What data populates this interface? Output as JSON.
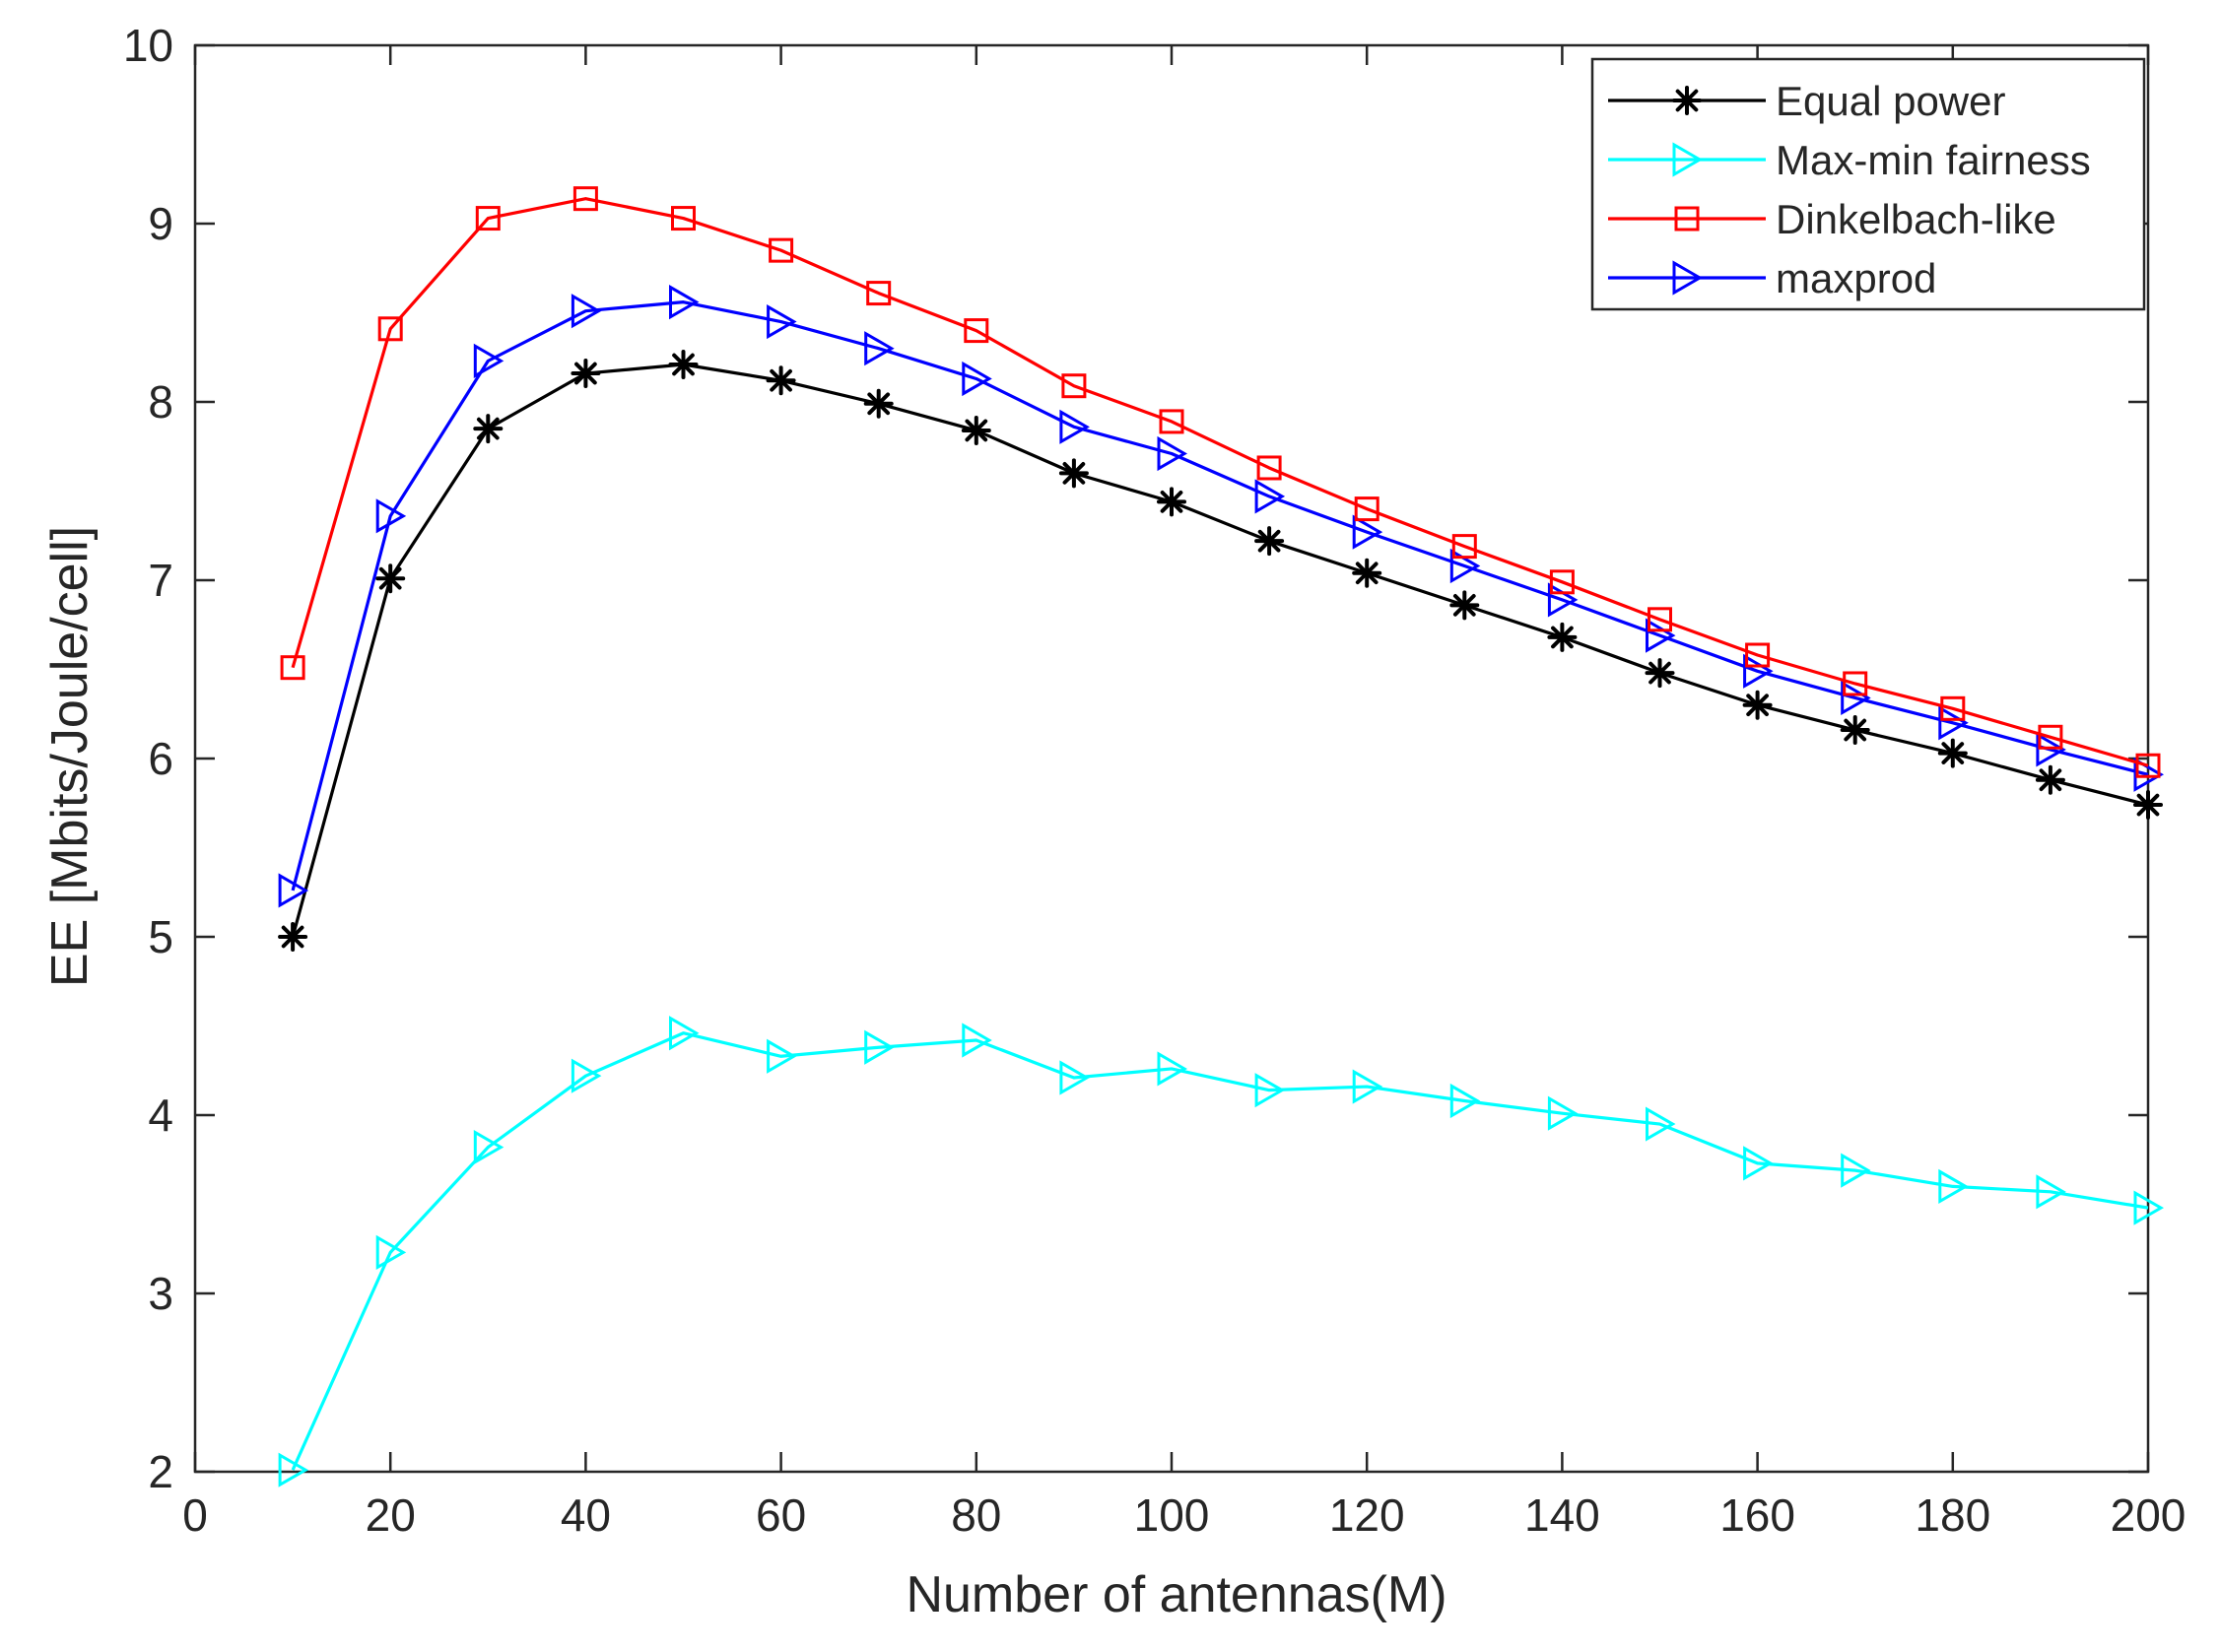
{
  "chart_data": {
    "type": "line",
    "title": "",
    "xlabel": "Number of antennas(M)",
    "ylabel": "EE [Mbits/Joule/cell]",
    "xlim": [
      0,
      200
    ],
    "ylim": [
      2,
      10
    ],
    "xticks": [
      0,
      20,
      40,
      60,
      80,
      100,
      120,
      140,
      160,
      180,
      200
    ],
    "yticks": [
      2,
      3,
      4,
      5,
      6,
      7,
      8,
      9,
      10
    ],
    "grid": false,
    "legend_position": "top-right",
    "x": [
      10,
      20,
      30,
      40,
      50,
      60,
      70,
      80,
      90,
      100,
      110,
      120,
      130,
      140,
      150,
      160,
      170,
      180,
      190,
      200
    ],
    "series": [
      {
        "name": "Equal power",
        "color": "#000000",
        "marker": "asterisk",
        "values": [
          5.0,
          7.01,
          7.85,
          8.16,
          8.21,
          8.12,
          7.99,
          7.84,
          7.6,
          7.44,
          7.22,
          7.04,
          6.86,
          6.68,
          6.48,
          6.3,
          6.16,
          6.03,
          5.88,
          5.74
        ]
      },
      {
        "name": "Max-min fairness",
        "color": "#00ffff",
        "marker": "triangle-right",
        "values": [
          2.01,
          3.23,
          3.82,
          4.22,
          4.46,
          4.33,
          4.38,
          4.42,
          4.21,
          4.26,
          4.14,
          4.16,
          4.08,
          4.01,
          3.95,
          3.73,
          3.69,
          3.6,
          3.57,
          3.48
        ]
      },
      {
        "name": "Dinkelbach-like",
        "color": "#ff0000",
        "marker": "square",
        "values": [
          6.51,
          8.41,
          9.03,
          9.14,
          9.03,
          8.85,
          8.61,
          8.4,
          8.09,
          7.89,
          7.63,
          7.4,
          7.19,
          6.99,
          6.78,
          6.58,
          6.42,
          6.28,
          6.12,
          5.96
        ]
      },
      {
        "name": "maxprod",
        "color": "#0000ff",
        "marker": "triangle-right",
        "values": [
          5.26,
          7.36,
          8.23,
          8.51,
          8.56,
          8.45,
          8.3,
          8.13,
          7.86,
          7.71,
          7.47,
          7.27,
          7.08,
          6.89,
          6.69,
          6.49,
          6.34,
          6.2,
          6.05,
          5.91
        ]
      }
    ]
  }
}
